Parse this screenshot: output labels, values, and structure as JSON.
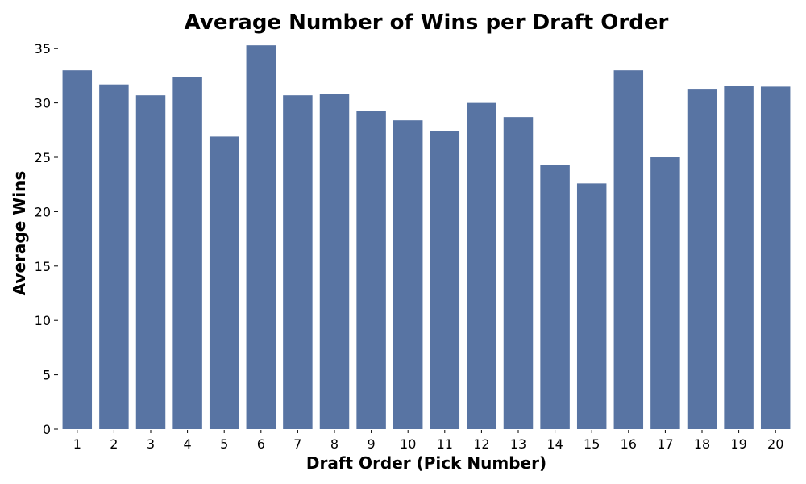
{
  "chart_data": {
    "type": "bar",
    "title": "Average Number of Wins per Draft Order",
    "xlabel": "Draft Order (Pick Number)",
    "ylabel": "Average Wins",
    "categories": [
      "1",
      "2",
      "3",
      "4",
      "5",
      "6",
      "7",
      "8",
      "9",
      "10",
      "11",
      "12",
      "13",
      "14",
      "15",
      "16",
      "17",
      "18",
      "19",
      "20"
    ],
    "values": [
      33.0,
      31.7,
      30.7,
      32.4,
      26.9,
      35.3,
      30.7,
      30.8,
      29.3,
      28.4,
      27.4,
      30.0,
      28.7,
      24.3,
      22.6,
      33.0,
      25.0,
      31.3,
      31.6,
      31.5
    ],
    "yticks": [
      0,
      5,
      10,
      15,
      20,
      25,
      30,
      35
    ],
    "ylim": [
      0,
      36.5
    ],
    "grid": false,
    "legend": "none",
    "bar_color": "#5874a3"
  }
}
